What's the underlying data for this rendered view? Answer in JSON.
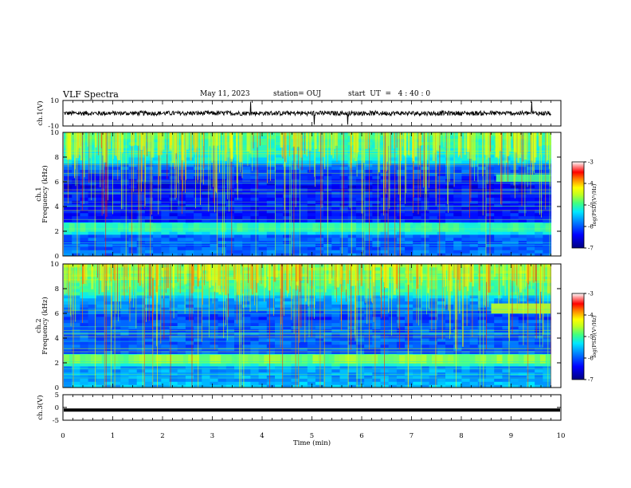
{
  "header": {
    "title": "VLF Spectra",
    "date": "May 11, 2023",
    "station": "station= OUJ",
    "start_ut": "start  UT  =   4 : 40 : 0"
  },
  "chart_data": [
    {
      "type": "line",
      "name": "ch.1 waveform",
      "ylabel": "ch.1(V)",
      "ylim": [
        -10,
        10
      ],
      "yticks": [
        "10",
        "-10"
      ],
      "xlim": [
        0,
        10
      ],
      "description_values": {
        "baseline": 0,
        "noise_amplitude": 2
      }
    },
    {
      "type": "heatmap",
      "name": "ch.1 spectrogram",
      "ylabel": "ch.1\nFrequency  (kHz)",
      "ylabel_line1": "ch.1",
      "ylabel_line2": "Frequency  (kHz)",
      "ylim": [
        0,
        10
      ],
      "yticks": [
        "0",
        "2",
        "4",
        "6",
        "8",
        "10"
      ],
      "xlim": [
        0,
        9.8
      ],
      "colorbar": {
        "label": "log(PSD)(V²/Hz)",
        "range": [
          -7,
          -3
        ],
        "ticks": [
          "-3",
          "-4",
          "-5",
          "-6",
          "-7"
        ]
      },
      "features": {
        "band_center_khz": 2.3,
        "upper_band_khz": [
          6.0,
          6.6
        ],
        "upper_band_start_min": 8.7
      }
    },
    {
      "type": "heatmap",
      "name": "ch.2 spectrogram",
      "ylabel": "ch.2\nFrequency  (kHz)",
      "ylabel_line1": "ch.2",
      "ylabel_line2": "Frequency  (kHz)",
      "ylim": [
        0,
        10
      ],
      "yticks": [
        "0",
        "2",
        "4",
        "6",
        "8",
        "10"
      ],
      "xlim": [
        0,
        9.8
      ],
      "colorbar": {
        "label": "log(PSD)(V²/Hz)",
        "range": [
          -7,
          -3
        ],
        "ticks": [
          "-3",
          "-4",
          "-5",
          "-6",
          "-7"
        ]
      },
      "features": {
        "band_center_khz": 2.3,
        "upper_band_khz": [
          6.0,
          6.8
        ],
        "upper_band_start_min": 8.6
      }
    },
    {
      "type": "line",
      "name": "ch.3 waveform",
      "ylabel": "ch.3(V)",
      "ylim": [
        -5,
        5
      ],
      "yticks": [
        "5",
        "0",
        "-5"
      ],
      "xlim": [
        0,
        10
      ],
      "values_constant": -1
    }
  ],
  "x_axis": {
    "label": "Time  (min)",
    "ticks": [
      "0",
      "1",
      "2",
      "3",
      "4",
      "5",
      "6",
      "7",
      "8",
      "9",
      "10"
    ],
    "range": [
      0,
      10
    ]
  },
  "colors": {
    "colormap": [
      "#000080",
      "#0000ff",
      "#0070ff",
      "#00e8ff",
      "#40ff90",
      "#c0ff20",
      "#ffff00",
      "#ff8000",
      "#ff0000",
      "#ff8080",
      "#ffffff"
    ]
  }
}
